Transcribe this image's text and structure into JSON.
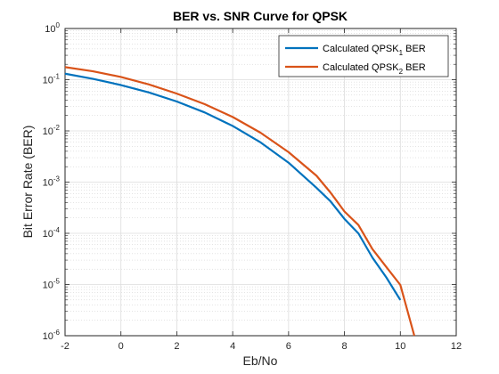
{
  "chart_data": {
    "type": "line",
    "title": "BER vs. SNR Curve for QPSK",
    "xlabel": "Eb/No",
    "ylabel": "Bit Error Rate (BER)",
    "xlim": [
      -2,
      12
    ],
    "ylim": [
      1e-06,
      1
    ],
    "yscale": "log",
    "grid": true,
    "minor_grid": true,
    "legend_position": "top-right",
    "x_ticks": [
      "-2",
      "0",
      "2",
      "4",
      "6",
      "8",
      "10",
      "12"
    ],
    "y_tick_exponents": [
      "-6",
      "-5",
      "-4",
      "-3",
      "-2",
      "-1",
      "0"
    ],
    "y_tick_base": "10",
    "series": [
      {
        "name_main": "Calculated QPSK",
        "name_sub": "1",
        "name_tail": " BER",
        "color": "#0072BD",
        "x": [
          -2,
          -1,
          0,
          1,
          2,
          3,
          4,
          5,
          6,
          7,
          7.5,
          8,
          8.5,
          9,
          9.5,
          10
        ],
        "y": [
          0.131,
          0.104,
          0.0786,
          0.0563,
          0.0375,
          0.0229,
          0.0125,
          0.00595,
          0.00239,
          0.000773,
          0.000422,
          0.000191,
          9.95e-05,
          3.36e-05,
          1.37e-05,
          4.98e-06
        ]
      },
      {
        "name_main": "Calculated QPSK",
        "name_sub": "2",
        "name_tail": " BER",
        "color": "#D95319",
        "x": [
          -2,
          -1,
          0,
          1,
          2,
          3,
          4,
          5,
          6,
          7,
          7.5,
          8,
          8.5,
          9,
          9.5,
          10,
          10.5
        ],
        "y": [
          0.176,
          0.146,
          0.113,
          0.0808,
          0.0535,
          0.0332,
          0.0187,
          0.00918,
          0.00384,
          0.00133,
          0.000625,
          0.000267,
          0.000145,
          4.93e-05,
          2.19e-05,
          9.8e-06,
          1e-06
        ]
      }
    ]
  }
}
